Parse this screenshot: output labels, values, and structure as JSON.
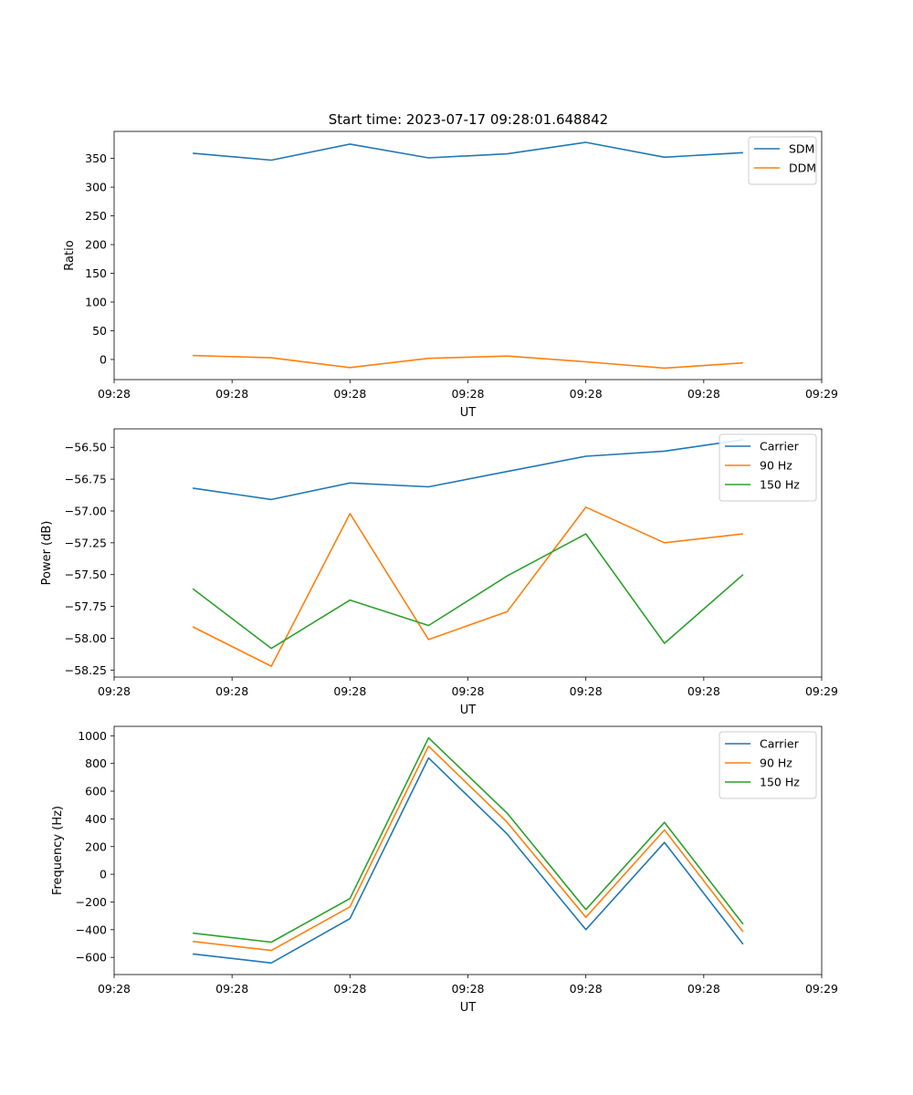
{
  "figure_title": "Start time: 2023-07-17 09:28:01.648842",
  "colors": {
    "c0": "#1f77b4",
    "c1": "#ff7f0e",
    "c2": "#2ca02c"
  },
  "chart_data": [
    {
      "type": "line",
      "ylabel": "Ratio",
      "xlabel": "UT",
      "x": [
        1,
        2,
        3,
        4,
        5,
        6,
        7,
        8
      ],
      "xlim": [
        0,
        9
      ],
      "x_ticks": [
        0,
        1.5,
        3,
        4.5,
        6,
        7.5,
        9
      ],
      "x_tick_labels": [
        "09:28",
        "09:28",
        "09:28",
        "09:28",
        "09:28",
        "09:28",
        "09:29"
      ],
      "ylim": [
        -35,
        397
      ],
      "y_ticks": [
        0,
        50,
        100,
        150,
        200,
        250,
        300,
        350
      ],
      "y_tick_labels": [
        "0",
        "50",
        "100",
        "150",
        "200",
        "250",
        "300",
        "350"
      ],
      "legend": "top-right",
      "series": [
        {
          "name": "SDM",
          "color": "#1f77b4",
          "values": [
            359,
            347,
            375,
            351,
            358,
            378,
            352,
            360
          ]
        },
        {
          "name": "DDM",
          "color": "#ff7f0e",
          "values": [
            7,
            3,
            -14,
            2,
            6,
            -4,
            -15,
            -6
          ]
        }
      ]
    },
    {
      "type": "line",
      "ylabel": "Power (dB)",
      "xlabel": "UT",
      "x": [
        1,
        2,
        3,
        4,
        5,
        6,
        7,
        8
      ],
      "xlim": [
        0,
        9
      ],
      "x_ticks": [
        0,
        1.5,
        3,
        4.5,
        6,
        7.5,
        9
      ],
      "x_tick_labels": [
        "09:28",
        "09:28",
        "09:28",
        "09:28",
        "09:28",
        "09:28",
        "09:29"
      ],
      "ylim": [
        -58.305,
        -56.355
      ],
      "y_ticks": [
        -58.25,
        -58.0,
        -57.75,
        -57.5,
        -57.25,
        -57.0,
        -56.75,
        -56.5
      ],
      "y_tick_labels": [
        "−58.25",
        "−58.00",
        "−57.75",
        "−57.50",
        "−57.25",
        "−57.00",
        "−56.75",
        "−56.50"
      ],
      "legend": "top-right",
      "series": [
        {
          "name": "Carrier",
          "color": "#1f77b4",
          "values": [
            -56.82,
            -56.91,
            -56.78,
            -56.81,
            -56.69,
            -56.57,
            -56.53,
            -56.44
          ]
        },
        {
          "name": "90 Hz",
          "color": "#ff7f0e",
          "values": [
            -57.91,
            -58.22,
            -57.02,
            -58.01,
            -57.79,
            -56.97,
            -57.25,
            -57.18
          ]
        },
        {
          "name": "150 Hz",
          "color": "#2ca02c",
          "values": [
            -57.61,
            -58.08,
            -57.7,
            -57.9,
            -57.51,
            -57.18,
            -58.04,
            -57.5
          ]
        }
      ]
    },
    {
      "type": "line",
      "ylabel": "Frequency (Hz)",
      "xlabel": "UT",
      "x": [
        1,
        2,
        3,
        4,
        5,
        6,
        7,
        8
      ],
      "xlim": [
        0,
        9
      ],
      "x_ticks": [
        0,
        1.5,
        3,
        4.5,
        6,
        7.5,
        9
      ],
      "x_tick_labels": [
        "09:28",
        "09:28",
        "09:28",
        "09:28",
        "09:28",
        "09:28",
        "09:29"
      ],
      "ylim": [
        -724,
        1068
      ],
      "y_ticks": [
        -600,
        -400,
        -200,
        0,
        200,
        400,
        600,
        800,
        1000
      ],
      "y_tick_labels": [
        "−600",
        "−400",
        "−200",
        "0",
        "200",
        "400",
        "600",
        "800",
        "1000"
      ],
      "legend": "top-right",
      "series": [
        {
          "name": "Carrier",
          "color": "#1f77b4",
          "values": [
            -575,
            -640,
            -320,
            840,
            290,
            -400,
            230,
            -505
          ]
        },
        {
          "name": "90 Hz",
          "color": "#ff7f0e",
          "values": [
            -485,
            -550,
            -235,
            925,
            375,
            -310,
            320,
            -415
          ]
        },
        {
          "name": "150 Hz",
          "color": "#2ca02c",
          "values": [
            -425,
            -490,
            -175,
            985,
            440,
            -255,
            375,
            -360
          ]
        }
      ]
    }
  ]
}
